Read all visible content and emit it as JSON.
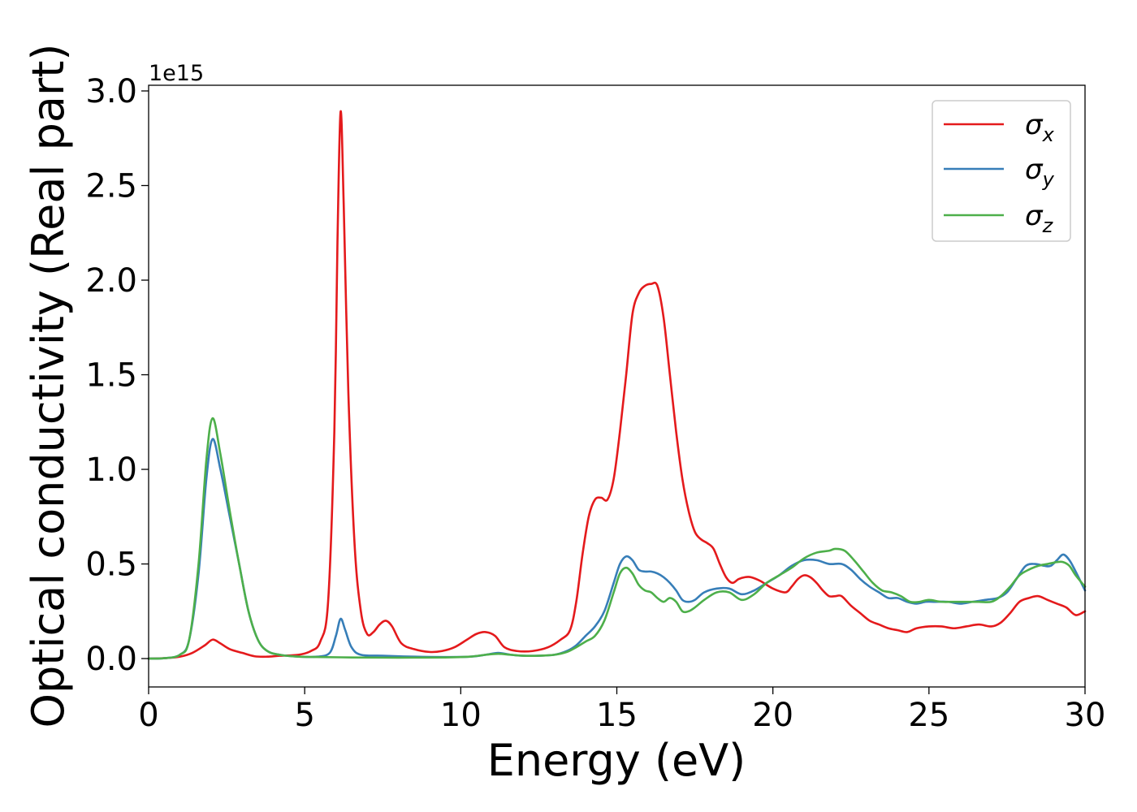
{
  "chart_data": {
    "type": "line",
    "title": "",
    "xlabel": "Energy (eV)",
    "ylabel": "Optical conductivity (Real part)",
    "y_offset_label": "1e15",
    "xlim": [
      0,
      30
    ],
    "ylim": [
      -0.15,
      3.03
    ],
    "xticks": [
      0,
      5,
      10,
      15,
      20,
      25,
      30
    ],
    "xtick_labels": [
      "0",
      "5",
      "10",
      "15",
      "20",
      "25",
      "30"
    ],
    "yticks": [
      0,
      0.5,
      1.0,
      1.5,
      2.0,
      2.5,
      3.0
    ],
    "ytick_labels": [
      "0.0",
      "0.5",
      "1.0",
      "1.5",
      "2.0",
      "2.5",
      "3.0"
    ],
    "grid": false,
    "legend_position": "top-right",
    "series": [
      {
        "name": "σx",
        "legend_symbol": "σ",
        "legend_subscript": "x",
        "color": "#e41a1c",
        "x": [
          0,
          0.5,
          1.0,
          1.4,
          1.8,
          2.05,
          2.3,
          2.6,
          3.0,
          3.4,
          3.8,
          4.2,
          4.8,
          5.2,
          5.5,
          5.75,
          5.95,
          6.05,
          6.15,
          6.25,
          6.4,
          6.6,
          6.8,
          7.0,
          7.2,
          7.4,
          7.6,
          7.8,
          8.1,
          8.5,
          9.0,
          9.4,
          9.8,
          10.2,
          10.5,
          10.8,
          11.1,
          11.4,
          11.8,
          12.3,
          12.8,
          13.2,
          13.5,
          13.7,
          13.9,
          14.1,
          14.3,
          14.5,
          14.7,
          14.9,
          15.1,
          15.3,
          15.5,
          15.7,
          15.9,
          16.1,
          16.3,
          16.5,
          16.7,
          16.9,
          17.1,
          17.3,
          17.5,
          17.7,
          17.9,
          18.1,
          18.3,
          18.5,
          18.7,
          18.9,
          19.1,
          19.3,
          19.6,
          20.0,
          20.4,
          20.6,
          20.8,
          21.0,
          21.2,
          21.4,
          21.6,
          21.8,
          22.0,
          22.2,
          22.5,
          22.8,
          23.1,
          23.4,
          23.7,
          24.0,
          24.3,
          24.6,
          25.0,
          25.4,
          25.8,
          26.2,
          26.6,
          27.0,
          27.3,
          27.6,
          27.9,
          28.2,
          28.5,
          28.8,
          29.1,
          29.4,
          29.7,
          30.0
        ],
        "values": [
          0.0,
          0.002,
          0.01,
          0.03,
          0.07,
          0.1,
          0.08,
          0.05,
          0.03,
          0.012,
          0.01,
          0.015,
          0.02,
          0.04,
          0.09,
          0.3,
          1.2,
          2.2,
          2.89,
          2.4,
          1.4,
          0.6,
          0.25,
          0.13,
          0.14,
          0.18,
          0.2,
          0.17,
          0.08,
          0.05,
          0.035,
          0.04,
          0.06,
          0.1,
          0.13,
          0.14,
          0.12,
          0.06,
          0.04,
          0.04,
          0.06,
          0.1,
          0.15,
          0.3,
          0.55,
          0.75,
          0.84,
          0.85,
          0.84,
          0.95,
          1.2,
          1.5,
          1.82,
          1.93,
          1.97,
          1.98,
          1.97,
          1.8,
          1.5,
          1.2,
          0.95,
          0.78,
          0.67,
          0.63,
          0.61,
          0.58,
          0.5,
          0.43,
          0.4,
          0.42,
          0.43,
          0.43,
          0.41,
          0.37,
          0.35,
          0.38,
          0.42,
          0.44,
          0.43,
          0.4,
          0.36,
          0.33,
          0.33,
          0.33,
          0.28,
          0.24,
          0.2,
          0.18,
          0.16,
          0.15,
          0.14,
          0.16,
          0.17,
          0.17,
          0.16,
          0.17,
          0.18,
          0.17,
          0.19,
          0.24,
          0.3,
          0.32,
          0.33,
          0.31,
          0.29,
          0.27,
          0.23,
          0.25
        ]
      },
      {
        "name": "σy",
        "legend_symbol": "σ",
        "legend_subscript": "y",
        "color": "#377eb8",
        "x": [
          0,
          0.5,
          1.0,
          1.3,
          1.6,
          1.85,
          2.05,
          2.3,
          2.6,
          2.9,
          3.2,
          3.5,
          3.8,
          4.2,
          4.8,
          5.4,
          5.8,
          6.0,
          6.15,
          6.3,
          6.5,
          6.8,
          7.5,
          8.5,
          9.5,
          10.3,
          10.8,
          11.2,
          11.6,
          12.0,
          12.5,
          13.0,
          13.4,
          13.7,
          14.0,
          14.3,
          14.6,
          14.9,
          15.1,
          15.3,
          15.5,
          15.7,
          15.9,
          16.1,
          16.3,
          16.5,
          16.7,
          16.9,
          17.1,
          17.3,
          17.5,
          17.8,
          18.2,
          18.6,
          19.0,
          19.4,
          19.8,
          20.2,
          20.6,
          21.0,
          21.4,
          21.8,
          22.2,
          22.5,
          22.8,
          23.1,
          23.4,
          23.7,
          24.0,
          24.3,
          24.6,
          24.9,
          25.2,
          25.6,
          26.0,
          26.4,
          26.8,
          27.2,
          27.5,
          27.8,
          28.1,
          28.4,
          28.7,
          28.9,
          29.1,
          29.3,
          29.5,
          29.7,
          30.0
        ],
        "values": [
          0.0,
          0.002,
          0.02,
          0.1,
          0.45,
          0.95,
          1.16,
          1.0,
          0.75,
          0.5,
          0.25,
          0.1,
          0.04,
          0.02,
          0.01,
          0.01,
          0.03,
          0.12,
          0.21,
          0.15,
          0.06,
          0.02,
          0.015,
          0.01,
          0.008,
          0.01,
          0.02,
          0.03,
          0.02,
          0.015,
          0.015,
          0.02,
          0.04,
          0.07,
          0.12,
          0.17,
          0.25,
          0.4,
          0.5,
          0.54,
          0.52,
          0.47,
          0.46,
          0.46,
          0.45,
          0.43,
          0.4,
          0.36,
          0.31,
          0.3,
          0.31,
          0.35,
          0.37,
          0.37,
          0.34,
          0.36,
          0.4,
          0.44,
          0.49,
          0.52,
          0.52,
          0.5,
          0.5,
          0.47,
          0.42,
          0.38,
          0.35,
          0.32,
          0.32,
          0.3,
          0.29,
          0.3,
          0.3,
          0.3,
          0.29,
          0.3,
          0.31,
          0.32,
          0.35,
          0.42,
          0.49,
          0.5,
          0.49,
          0.49,
          0.52,
          0.55,
          0.52,
          0.46,
          0.36
        ]
      },
      {
        "name": "σz",
        "legend_symbol": "σ",
        "legend_subscript": "z",
        "color": "#4daf4a",
        "x": [
          0,
          0.5,
          1.0,
          1.3,
          1.6,
          1.85,
          2.05,
          2.3,
          2.6,
          2.9,
          3.2,
          3.5,
          3.8,
          4.2,
          4.8,
          5.5,
          6.5,
          7.5,
          8.5,
          9.5,
          10.3,
          10.8,
          11.2,
          11.6,
          12.0,
          12.5,
          13.0,
          13.4,
          13.7,
          14.0,
          14.3,
          14.6,
          14.9,
          15.1,
          15.3,
          15.5,
          15.7,
          15.9,
          16.1,
          16.3,
          16.5,
          16.7,
          16.9,
          17.1,
          17.3,
          17.5,
          17.8,
          18.2,
          18.6,
          19.0,
          19.4,
          19.8,
          20.2,
          20.6,
          21.0,
          21.4,
          21.8,
          22.0,
          22.3,
          22.6,
          22.9,
          23.2,
          23.5,
          23.8,
          24.1,
          24.4,
          24.7,
          25.0,
          25.4,
          25.8,
          26.2,
          26.6,
          27.0,
          27.3,
          27.6,
          27.9,
          28.2,
          28.5,
          28.8,
          29.1,
          29.3,
          29.5,
          29.7,
          30.0
        ],
        "values": [
          0.0,
          0.002,
          0.02,
          0.1,
          0.5,
          1.05,
          1.27,
          1.08,
          0.78,
          0.5,
          0.25,
          0.1,
          0.04,
          0.02,
          0.01,
          0.008,
          0.006,
          0.005,
          0.005,
          0.006,
          0.01,
          0.02,
          0.025,
          0.02,
          0.015,
          0.015,
          0.02,
          0.035,
          0.06,
          0.09,
          0.12,
          0.2,
          0.35,
          0.45,
          0.48,
          0.45,
          0.39,
          0.36,
          0.35,
          0.32,
          0.3,
          0.32,
          0.3,
          0.25,
          0.25,
          0.27,
          0.31,
          0.35,
          0.35,
          0.31,
          0.34,
          0.4,
          0.44,
          0.48,
          0.53,
          0.56,
          0.57,
          0.58,
          0.57,
          0.52,
          0.46,
          0.4,
          0.36,
          0.35,
          0.33,
          0.3,
          0.3,
          0.31,
          0.3,
          0.3,
          0.3,
          0.3,
          0.3,
          0.33,
          0.38,
          0.44,
          0.47,
          0.49,
          0.5,
          0.51,
          0.51,
          0.49,
          0.44,
          0.38
        ]
      }
    ]
  }
}
